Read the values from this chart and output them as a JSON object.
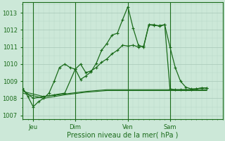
{
  "background_color": "#cce8d8",
  "grid_color_major": "#a8c8b8",
  "grid_color_minor": "#b8d8c8",
  "line_color": "#1a6b1a",
  "axis_label": "Pression niveau de la mer( hPa )",
  "ylim": [
    1006.8,
    1013.6
  ],
  "yticks": [
    1007,
    1008,
    1009,
    1010,
    1011,
    1012,
    1013
  ],
  "day_labels": [
    "Jeu",
    "Dim",
    "Ven",
    "Sam"
  ],
  "day_positions": [
    2,
    10,
    20,
    28
  ],
  "xlim": [
    0,
    38
  ],
  "series1_x": [
    0,
    1,
    2,
    3,
    4,
    5,
    6,
    7,
    8,
    9,
    10,
    11,
    12,
    13,
    14,
    15,
    16,
    17,
    18,
    19,
    20,
    21,
    22,
    23,
    24,
    25,
    26,
    27,
    28,
    29,
    30,
    31,
    32,
    33,
    34,
    35
  ],
  "series1_y": [
    1008.6,
    1008.1,
    1007.5,
    1007.8,
    1008.0,
    1008.3,
    1009.0,
    1009.8,
    1010.0,
    1009.8,
    1009.7,
    1009.1,
    1009.3,
    1009.55,
    1010.05,
    1010.8,
    1011.2,
    1011.7,
    1011.8,
    1012.6,
    1013.35,
    1012.1,
    1011.1,
    1011.0,
    1012.3,
    1012.3,
    1012.2,
    1012.3,
    1011.0,
    1009.8,
    1009.0,
    1008.65,
    1008.55,
    1008.55,
    1008.6,
    1008.6
  ],
  "series2_x": [
    0,
    2,
    4,
    6,
    8,
    10,
    11,
    12,
    13,
    14,
    15,
    16,
    17,
    18,
    19,
    20,
    21,
    22,
    23,
    24,
    25,
    26,
    27,
    28,
    29,
    30,
    31,
    32,
    33,
    34,
    35
  ],
  "series2_y": [
    1008.5,
    1008.0,
    1008.1,
    1008.2,
    1008.3,
    1009.7,
    1010.0,
    1009.5,
    1009.6,
    1009.8,
    1010.1,
    1010.3,
    1010.6,
    1010.8,
    1011.1,
    1011.05,
    1011.1,
    1011.0,
    1011.05,
    1012.3,
    1012.25,
    1012.25,
    1012.3,
    1008.55,
    1008.5,
    1008.5,
    1008.5,
    1008.5,
    1008.55,
    1008.6,
    1008.6
  ],
  "series3_x": [
    0,
    4,
    8,
    12,
    16,
    20,
    24,
    28,
    32,
    35
  ],
  "series3_y": [
    1008.4,
    1008.1,
    1008.25,
    1008.4,
    1008.5,
    1008.5,
    1008.5,
    1008.5,
    1008.5,
    1008.5
  ],
  "series4_x": [
    0,
    4,
    8,
    12,
    16,
    20,
    24,
    28,
    32,
    35
  ],
  "series4_y": [
    1008.3,
    1008.0,
    1008.2,
    1008.35,
    1008.45,
    1008.45,
    1008.45,
    1008.45,
    1008.45,
    1008.45
  ]
}
